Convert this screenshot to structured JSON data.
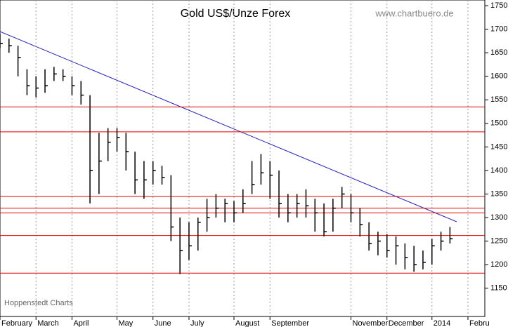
{
  "chart_data": {
    "type": "ohlc",
    "title": "Gold US$/Unze Forex",
    "source": "www.chartbuero.de",
    "credit": "Hoppenstedt Charts",
    "categories": [
      "February",
      null,
      null,
      null,
      "March",
      null,
      null,
      null,
      "April",
      null,
      null,
      null,
      null,
      "May",
      null,
      null,
      null,
      "June",
      null,
      null,
      null,
      "July",
      null,
      null,
      null,
      null,
      "August",
      null,
      null,
      null,
      "September",
      null,
      null,
      null,
      null,
      null,
      null,
      null,
      null,
      "November",
      null,
      null,
      null,
      "December",
      null,
      null,
      null,
      null,
      "2014",
      null,
      null,
      null,
      "Febru"
    ],
    "high": [
      1690,
      1680,
      1665,
      1615,
      1600,
      1615,
      1620,
      1615,
      1600,
      1590,
      1560,
      1480,
      1490,
      1490,
      1480,
      1440,
      1420,
      1420,
      1410,
      1390,
      1300,
      1290,
      1300,
      1340,
      1350,
      1340,
      1335,
      1360,
      1420,
      1435,
      1420,
      1400,
      1350,
      1350,
      1360,
      1340,
      1330,
      1340,
      1365,
      1350,
      1320,
      1290,
      1270,
      1265,
      1260,
      1245,
      1240,
      1230,
      1255,
      1270,
      1280,
      null,
      null
    ],
    "low": [
      1660,
      1650,
      1600,
      1560,
      1555,
      1565,
      1590,
      1590,
      1560,
      1540,
      1330,
      1350,
      1420,
      1440,
      1400,
      1350,
      1340,
      1370,
      1370,
      1250,
      1180,
      1210,
      1230,
      1270,
      1300,
      1290,
      1290,
      1310,
      1350,
      1370,
      1340,
      1300,
      1290,
      1300,
      1300,
      1270,
      1260,
      1270,
      1320,
      1290,
      1260,
      1230,
      1220,
      1215,
      1200,
      1190,
      1185,
      1190,
      1200,
      1230,
      1245,
      null,
      null
    ],
    "close": [
      1670,
      1665,
      1640,
      1580,
      1575,
      1580,
      1605,
      1600,
      1580,
      1560,
      1400,
      1420,
      1460,
      1470,
      1440,
      1380,
      1380,
      1400,
      1385,
      1280,
      1230,
      1240,
      1290,
      1300,
      1320,
      1330,
      1310,
      1330,
      1370,
      1395,
      1390,
      1330,
      1310,
      1330,
      1325,
      1310,
      1270,
      1320,
      1350,
      1310,
      1285,
      1245,
      1250,
      1230,
      1240,
      1215,
      1200,
      1205,
      1240,
      1250,
      1255,
      null,
      null
    ],
    "color": "#000000",
    "hlines": [
      1535,
      1482,
      1345,
      1320,
      1310,
      1262,
      1182
    ],
    "hline_color": "#e00000",
    "ylim": [
      1090,
      1762
    ],
    "yticks": [
      1150,
      1200,
      1250,
      1300,
      1350,
      1400,
      1450,
      1500,
      1550,
      1600,
      1650,
      1700,
      1750
    ],
    "grid": true
  }
}
